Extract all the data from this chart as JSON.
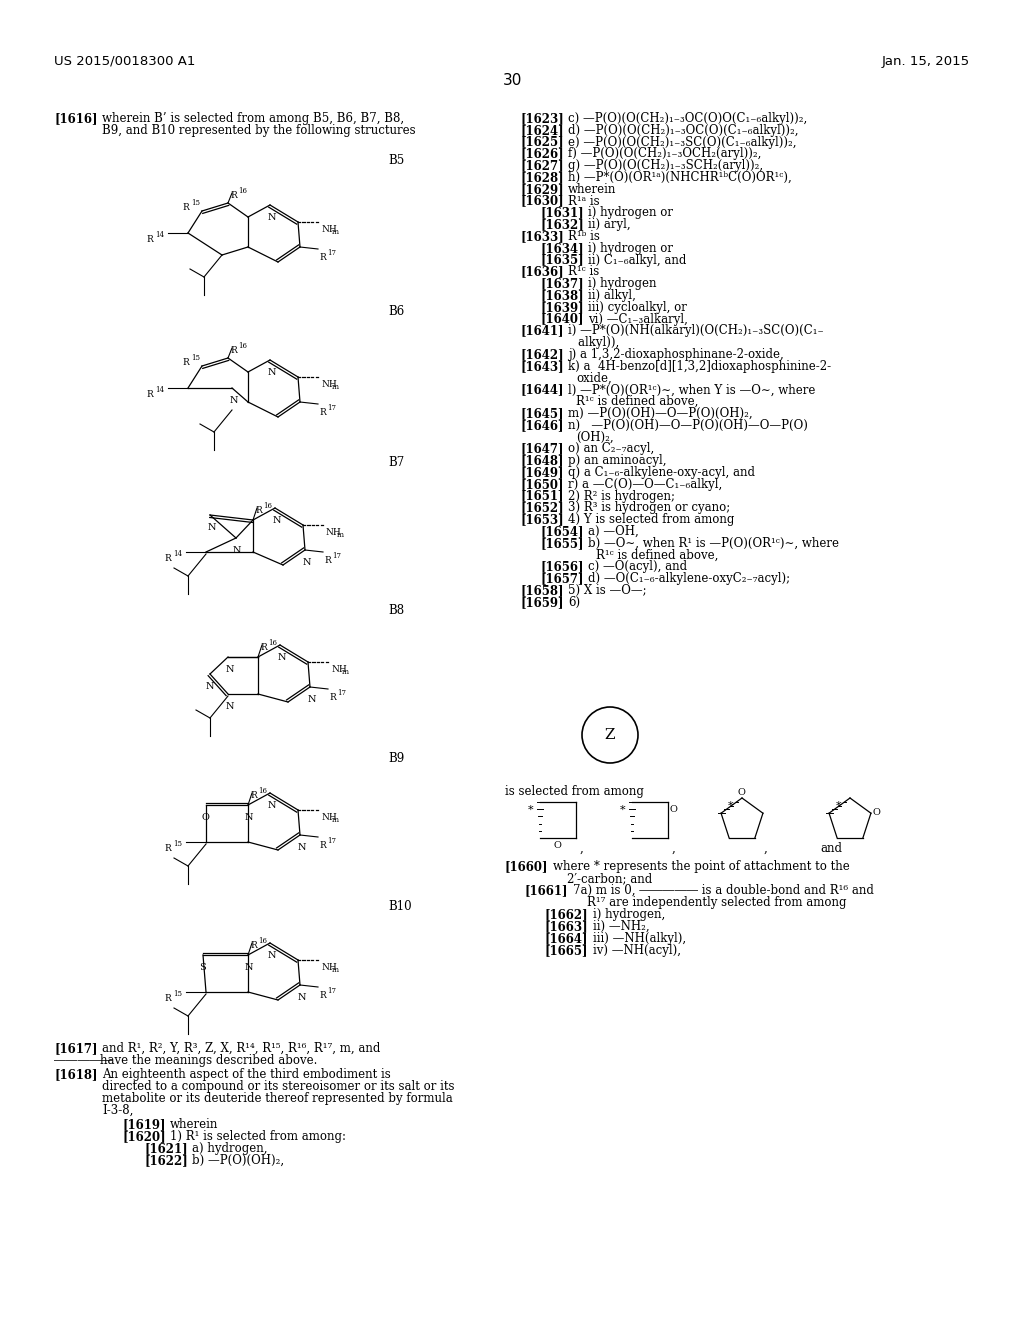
{
  "page_header_left": "US 2015/0018300 A1",
  "page_header_right": "Jan. 15, 2015",
  "page_number": "30",
  "background_color": "#ffffff"
}
